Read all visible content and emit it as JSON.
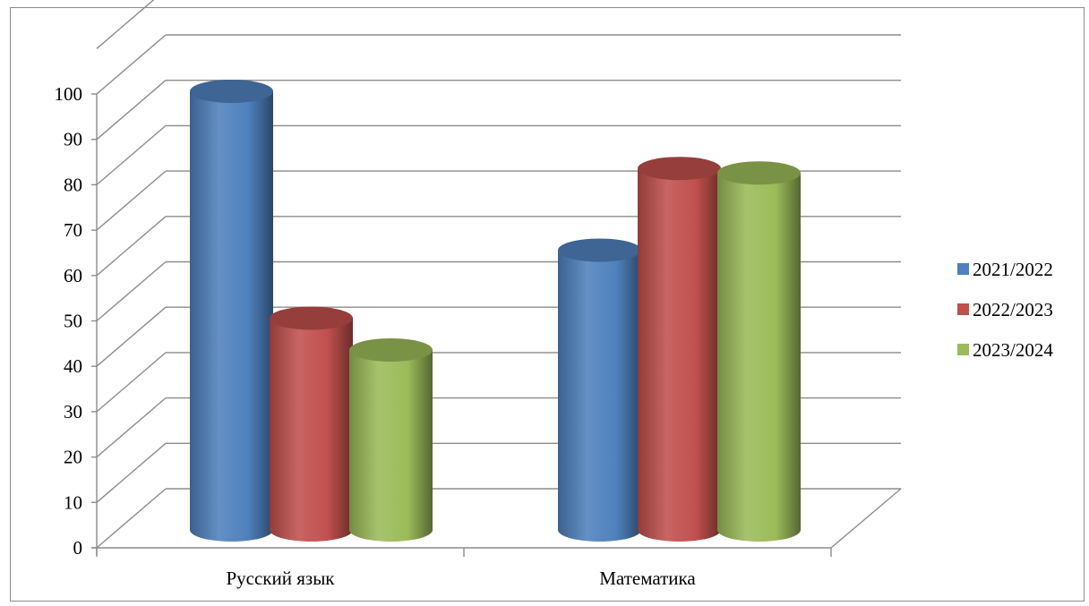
{
  "chart_data": {
    "type": "bar",
    "style": "3d-cylinder",
    "categories": [
      "Русский язык",
      "Математика"
    ],
    "series": [
      {
        "name": "2021/2022",
        "values": [
          100,
          65
        ],
        "color": "#4f81bd"
      },
      {
        "name": "2022/2023",
        "values": [
          50,
          83
        ],
        "color": "#c0504d"
      },
      {
        "name": "2023/2024",
        "values": [
          43,
          82
        ],
        "color": "#9bbb59"
      }
    ],
    "ylim": [
      0,
      110
    ],
    "y_ticks": [
      0,
      10,
      20,
      30,
      40,
      50,
      60,
      70,
      80,
      90,
      100
    ],
    "grid": true,
    "legend_position": "right"
  }
}
